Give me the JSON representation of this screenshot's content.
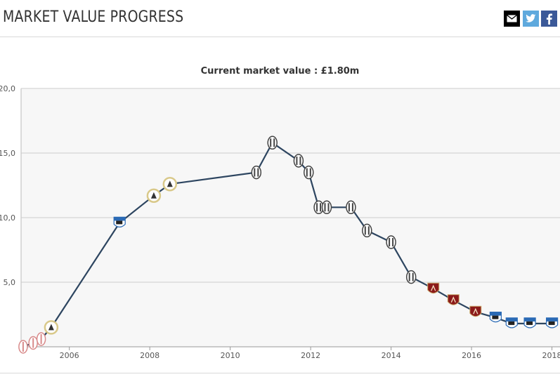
{
  "header": {
    "title": "MARKET VALUE PROGRESS",
    "share_icons": [
      "mail-icon",
      "twitter-icon",
      "facebook-icon"
    ]
  },
  "colors": {
    "line": "#2d4560",
    "plot_bg": "#f7f7f7",
    "grid": "#cccccc",
    "udinese": "#d9c98a",
    "sampdoria": "#2a6ab5",
    "juventus": "#444444",
    "torino": "#8b1a1a",
    "early_club": "#d88a8a"
  },
  "chart_data": {
    "type": "line",
    "title": "Current market value : £1.80m",
    "xlabel": "",
    "ylabel": "",
    "xlim": [
      2004.8,
      2018.2
    ],
    "ylim": [
      0,
      20
    ],
    "x_ticks": [
      2006,
      2008,
      2010,
      2012,
      2014,
      2016,
      2018
    ],
    "x_tick_labels": [
      "2006",
      "2008",
      "2010",
      "2012",
      "2014",
      "2016",
      "2018"
    ],
    "y_ticks": [
      0,
      5,
      10,
      15,
      20
    ],
    "y_tick_labels": [
      "",
      "5,0",
      "10,0",
      "15,0",
      "20,0"
    ],
    "grid": true,
    "series": [
      {
        "points": [
          {
            "x": 2004.85,
            "y": 0.0,
            "club": "early_club"
          },
          {
            "x": 2005.1,
            "y": 0.3,
            "club": "early_club"
          },
          {
            "x": 2005.3,
            "y": 0.6,
            "club": "early_club"
          },
          {
            "x": 2005.55,
            "y": 1.5,
            "club": "udinese"
          },
          {
            "x": 2007.25,
            "y": 9.6,
            "club": "sampdoria"
          },
          {
            "x": 2008.1,
            "y": 11.7,
            "club": "udinese"
          },
          {
            "x": 2008.5,
            "y": 12.6,
            "club": "udinese"
          },
          {
            "x": 2010.65,
            "y": 13.5,
            "club": "juventus"
          },
          {
            "x": 2011.05,
            "y": 15.8,
            "club": "juventus"
          },
          {
            "x": 2011.7,
            "y": 14.4,
            "club": "juventus"
          },
          {
            "x": 2011.95,
            "y": 13.5,
            "club": "juventus"
          },
          {
            "x": 2012.2,
            "y": 10.8,
            "club": "juventus"
          },
          {
            "x": 2012.4,
            "y": 10.8,
            "club": "juventus"
          },
          {
            "x": 2013.0,
            "y": 10.8,
            "club": "juventus"
          },
          {
            "x": 2013.4,
            "y": 9.0,
            "club": "juventus"
          },
          {
            "x": 2014.0,
            "y": 8.1,
            "club": "juventus"
          },
          {
            "x": 2014.5,
            "y": 5.4,
            "club": "juventus"
          },
          {
            "x": 2015.05,
            "y": 4.5,
            "club": "torino"
          },
          {
            "x": 2015.55,
            "y": 3.6,
            "club": "torino"
          },
          {
            "x": 2016.1,
            "y": 2.7,
            "club": "torino"
          },
          {
            "x": 2016.6,
            "y": 2.25,
            "club": "sampdoria"
          },
          {
            "x": 2017.0,
            "y": 1.8,
            "club": "sampdoria"
          },
          {
            "x": 2017.45,
            "y": 1.8,
            "club": "sampdoria"
          },
          {
            "x": 2018.0,
            "y": 1.8,
            "club": "sampdoria"
          }
        ]
      }
    ]
  }
}
